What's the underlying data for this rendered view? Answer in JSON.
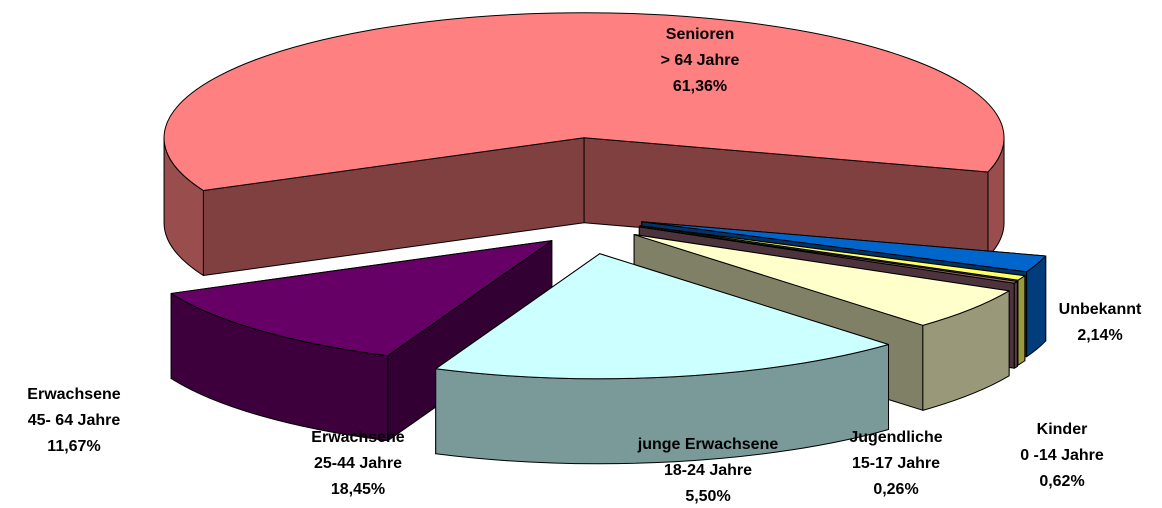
{
  "chart_data": {
    "type": "pie",
    "categories": [
      [
        "Senioren",
        "> 64 Jahre"
      ],
      [
        "Unbekannt"
      ],
      [
        "Kinder",
        "0 -14 Jahre"
      ],
      [
        "Jugendliche",
        "15-17 Jahre"
      ],
      [
        "junge Erwachsene",
        "18-24 Jahre"
      ],
      [
        "Erwachsene",
        "25-44 Jahre"
      ],
      [
        "Erwachsene",
        "45- 64 Jahre"
      ]
    ],
    "values": [
      61.36,
      2.14,
      0.62,
      0.26,
      5.5,
      18.45,
      11.67
    ],
    "value_labels": [
      "61,36%",
      "2,14%",
      "0,62%",
      "0,26%",
      "5,50%",
      "18,45%",
      "11,67%"
    ],
    "colors": [
      "#ff8080",
      "#0066cc",
      "#ffff66",
      "#996677",
      "#ffffcc",
      "#ccffff",
      "#660066"
    ]
  }
}
